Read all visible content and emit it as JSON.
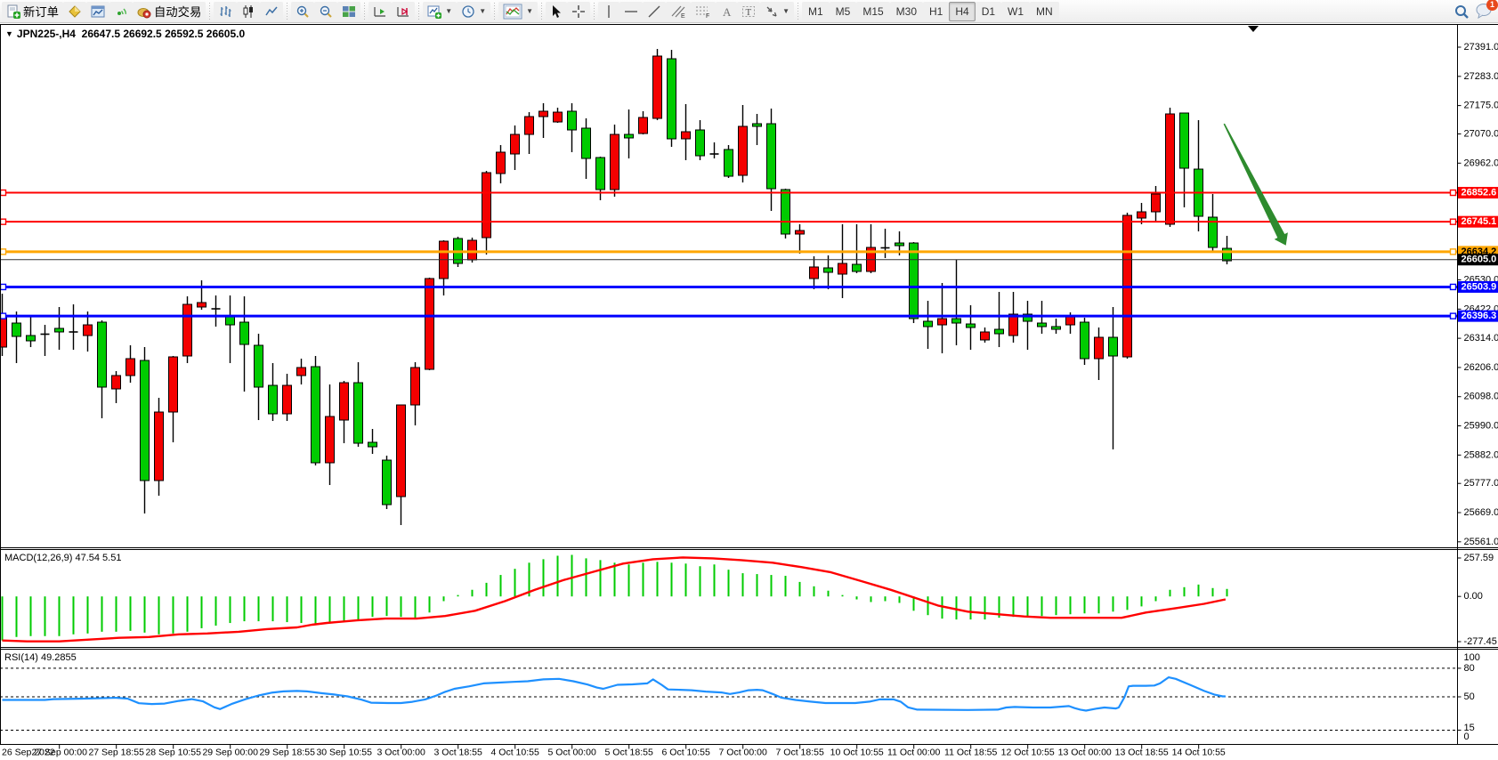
{
  "toolbar": {
    "new_order_label": "新订单",
    "auto_trading_label": "自动交易",
    "timeframes": [
      "M1",
      "M5",
      "M15",
      "M30",
      "H1",
      "H4",
      "D1",
      "W1",
      "MN"
    ],
    "active_timeframe": "H4",
    "chat_badge": "1",
    "tool_glyphs": {
      "vline": "|",
      "hline": "—",
      "trend": "/",
      "channel": "∕∕",
      "channel_tag": "E",
      "fib": "≋",
      "fib_tag": "F",
      "text": "A",
      "label": "T",
      "cursor": "➤",
      "cross": "+"
    }
  },
  "chart": {
    "symbol_period": "JPN225-,H4",
    "ohlc_text": "26647.5 26692.5 26592.5 26605.0"
  },
  "chart_data": {
    "type": "candlestick_with_indicators",
    "symbol": "JPN225-",
    "timeframe": "H4",
    "title_ohlc": {
      "open": 26647.5,
      "high": 26692.5,
      "low": 26592.5,
      "close": 26605.0
    },
    "scale": {
      "price_top": 27475.0,
      "price_bottom": 25535.7
    },
    "price_axis_labels": [
      27391.0,
      27283.0,
      27175.0,
      27070.0,
      26962.0,
      26530.0,
      26422.0,
      26314.0,
      26206.0,
      26098.0,
      25990.0,
      25882.0,
      25777.0,
      25669.0,
      25561.0
    ],
    "line_objects": [
      {
        "price": 26852.6,
        "color": "#ff0000",
        "width": 2,
        "label_bg": "#ff0000",
        "label_fg": "#ffffff"
      },
      {
        "price": 26745.1,
        "color": "#ff0000",
        "width": 2,
        "label_bg": "#ff0000",
        "label_fg": "#ffffff"
      },
      {
        "price": 26634.2,
        "color": "#ffa600",
        "width": 3,
        "label_bg": "#ffa600",
        "label_fg": "#000000"
      },
      {
        "price": 26503.9,
        "color": "#0000ff",
        "width": 3,
        "label_bg": "#0000ff",
        "label_fg": "#ffffff"
      },
      {
        "price": 26396.3,
        "color": "#0000ff",
        "width": 3,
        "label_bg": "#0000ff",
        "label_fg": "#ffffff"
      }
    ],
    "current_price": 26605.0,
    "x_axis_labels": [
      "26 Sep 2022",
      "27 Sep 00:00",
      "27 Sep 18:55",
      "28 Sep 10:55",
      "29 Sep 00:00",
      "29 Sep 18:55",
      "30 Sep 10:55",
      "3 Oct 00:00",
      "3 Oct 18:55",
      "4 Oct 10:55",
      "5 Oct 00:00",
      "5 Oct 18:55",
      "6 Oct 10:55",
      "7 Oct 00:00",
      "7 Oct 18:55",
      "10 Oct 10:55",
      "11 Oct 00:00",
      "11 Oct 18:55",
      "12 Oct 10:55",
      "13 Oct 00:00",
      "13 Oct 18:55",
      "14 Oct 10:55"
    ],
    "candles": [
      [
        26396.7,
        26479.0,
        26248.5,
        26281.4
      ],
      [
        26320.9,
        26413.1,
        26222.2,
        26370.3
      ],
      [
        26304.5,
        26396.7,
        26281.4,
        26324.2
      ],
      [
        26329.2,
        26363.7,
        26248.5,
        26329.2
      ],
      [
        26337.4,
        26429.6,
        26271.5,
        26350.6
      ],
      [
        26337.4,
        26439.5,
        26271.5,
        26337.4
      ],
      [
        26363.7,
        26413.1,
        26264.9,
        26324.2
      ],
      [
        26133.3,
        26380.2,
        26018.0,
        26373.6
      ],
      [
        26176.1,
        26192.5,
        26074.0,
        26126.7
      ],
      [
        26238.6,
        26288.0,
        26149.7,
        26176.1
      ],
      [
        25787.6,
        26281.4,
        25665.7,
        26232.0
      ],
      [
        26041.1,
        26093.7,
        25731.6,
        25787.6
      ],
      [
        26245.2,
        26248.5,
        25929.1,
        26041.1
      ],
      [
        26439.5,
        26469.1,
        26222.2,
        26248.5
      ],
      [
        26446.1,
        26528.4,
        26419.7,
        26429.6
      ],
      [
        26423.0,
        26472.4,
        26357.2,
        26423.0
      ],
      [
        26363.7,
        26472.4,
        26222.2,
        26396.7
      ],
      [
        26291.3,
        26469.1,
        26116.8,
        26373.6
      ],
      [
        26133.3,
        26330.8,
        26011.4,
        26288.0
      ],
      [
        26034.5,
        26222.2,
        26008.1,
        26139.8
      ],
      [
        26139.8,
        26182.7,
        26008.1,
        26034.5
      ],
      [
        26205.7,
        26238.6,
        26143.1,
        26176.1
      ],
      [
        25853.4,
        26248.5,
        25843.6,
        26209.0
      ],
      [
        26024.6,
        26143.1,
        25771.1,
        25853.4
      ],
      [
        26149.7,
        26156.3,
        25925.8,
        26011.4
      ],
      [
        25925.8,
        26225.5,
        25912.6,
        26149.7
      ],
      [
        25912.6,
        25978.5,
        25886.3,
        25929.1
      ],
      [
        25698.6,
        25879.7,
        25682.2,
        25863.2
      ],
      [
        26067.4,
        26067.4,
        25622.9,
        25728.3
      ],
      [
        26205.7,
        26225.5,
        25991.7,
        26067.4
      ],
      [
        26535.0,
        26538.3,
        26195.8,
        26199.1
      ],
      [
        26673.2,
        26676.5,
        26472.4,
        26535.0
      ],
      [
        26590.9,
        26689.7,
        26577.8,
        26683.1
      ],
      [
        26676.5,
        26686.4,
        26594.2,
        26604.1
      ],
      [
        26926.8,
        26933.3,
        26623.8,
        26686.4
      ],
      [
        27002.5,
        27028.8,
        26887.2,
        26923.5
      ],
      [
        27068.3,
        27101.3,
        26936.6,
        26995.9
      ],
      [
        27134.2,
        27150.6,
        26995.9,
        27068.3
      ],
      [
        27154.0,
        27183.6,
        27055.2,
        27134.2
      ],
      [
        27150.6,
        27167.1,
        27111.1,
        27114.4
      ],
      [
        27084.8,
        27183.6,
        27002.5,
        27154.0
      ],
      [
        26979.4,
        27127.6,
        26903.7,
        27091.4
      ],
      [
        26864.2,
        26986.0,
        26824.7,
        26982.7
      ],
      [
        27068.3,
        27104.6,
        26837.9,
        26864.2
      ],
      [
        27055.2,
        27160.5,
        26979.4,
        27068.3
      ],
      [
        27130.9,
        27154.0,
        27068.3,
        27071.6
      ],
      [
        27358.1,
        27384.4,
        27121.0,
        27127.6
      ],
      [
        27051.9,
        27381.1,
        27022.2,
        27348.2
      ],
      [
        27078.2,
        27180.3,
        26972.9,
        27051.9
      ],
      [
        26989.3,
        27121.0,
        26972.9,
        27084.8
      ],
      [
        26995.9,
        27038.7,
        26979.4,
        26995.9
      ],
      [
        26913.6,
        27028.8,
        26907.0,
        27012.4
      ],
      [
        27098.0,
        27177.0,
        26890.5,
        26916.9
      ],
      [
        27098.0,
        27144.1,
        27028.8,
        27107.9
      ],
      [
        26867.4,
        27163.8,
        26785.2,
        27107.9
      ],
      [
        26699.6,
        26867.4,
        26683.1,
        26864.2
      ],
      [
        26712.7,
        26735.8,
        26627.1,
        26699.6
      ],
      [
        26577.8,
        26617.3,
        26495.4,
        26535.0
      ],
      [
        26558.0,
        26620.6,
        26495.4,
        26574.5
      ],
      [
        26590.9,
        26735.8,
        26462.5,
        26551.4
      ],
      [
        26561.3,
        26735.8,
        26554.7,
        26587.6
      ],
      [
        26650.1,
        26735.8,
        26554.7,
        26561.3
      ],
      [
        26648.5,
        26719.3,
        26610.7,
        26648.5
      ],
      [
        26656.7,
        26709.5,
        26620.6,
        26666.6
      ],
      [
        26386.8,
        26669.9,
        26370.3,
        26666.6
      ],
      [
        26357.2,
        26452.6,
        26274.8,
        26376.9
      ],
      [
        26386.8,
        26518.5,
        26258.4,
        26363.7
      ],
      [
        26370.3,
        26604.1,
        26288.0,
        26386.8
      ],
      [
        26353.9,
        26436.2,
        26271.5,
        26367.0
      ],
      [
        26337.4,
        26353.9,
        26297.9,
        26307.8
      ],
      [
        26330.8,
        26485.6,
        26281.4,
        26347.2
      ],
      [
        26403.3,
        26485.6,
        26297.9,
        26324.2
      ],
      [
        26376.9,
        26452.6,
        26271.5,
        26403.3
      ],
      [
        26357.2,
        26452.6,
        26330.8,
        26370.3
      ],
      [
        26347.2,
        26386.8,
        26330.8,
        26357.2
      ],
      [
        26396.7,
        26409.8,
        26330.8,
        26363.7
      ],
      [
        26238.6,
        26390.1,
        26215.6,
        26373.6
      ],
      [
        26317.6,
        26353.9,
        26159.6,
        26238.6
      ],
      [
        26248.5,
        26429.6,
        25902.8,
        26317.6
      ],
      [
        26768.7,
        26778.6,
        26238.6,
        26245.2
      ],
      [
        26781.9,
        26814.8,
        26735.8,
        26758.8
      ],
      [
        26847.7,
        26877.4,
        26742.4,
        26781.9
      ],
      [
        27144.1,
        27167.1,
        26725.9,
        26735.8
      ],
      [
        26943.2,
        27147.4,
        26798.4,
        27147.4
      ],
      [
        26765.4,
        27121.0,
        26709.5,
        26939.9
      ],
      [
        26650.1,
        26847.7,
        26633.7,
        26762.1
      ],
      [
        26600.7,
        26692.9,
        26587.6,
        26646.8
      ]
    ],
    "colors": {
      "up": "#00cb00",
      "down": "#f40000",
      "wick": "#000000",
      "body_border": "#000000"
    },
    "arrow_object": {
      "t1": 85.8,
      "p1": 27107.8,
      "t2": 89.8,
      "p2": 26692.9,
      "color": "#2e8b2e"
    },
    "macd": {
      "label": "MACD(12,26,9) 47.54 5.51",
      "params": {
        "fast": 12,
        "slow": 26,
        "signal": 9
      },
      "current_main": 47.54,
      "current_signal": 5.51,
      "axis_labels": [
        257.59,
        0.0,
        -277.45
      ],
      "scale_max": 258,
      "scale_min": -287,
      "histogram": [
        -256.8,
        -236.4,
        -231.3,
        -231.3,
        -231.3,
        -221.1,
        -216.0,
        -205.8,
        -205.8,
        -200.7,
        -210.9,
        -221.1,
        -216.0,
        -205.8,
        -185.5,
        -170.2,
        -154.9,
        -144.7,
        -144.7,
        -144.7,
        -149.8,
        -154.9,
        -160.0,
        -154.9,
        -144.7,
        -134.5,
        -119.2,
        -114.1,
        -119.2,
        -129.4,
        -93.7,
        -27.5,
        8.2,
        38.7,
        79.5,
        125.3,
        161.0,
        196.7,
        217.1,
        237.4,
        242.5,
        222.2,
        212.0,
        196.7,
        186.5,
        196.7,
        201.8,
        196.7,
        191.6,
        176.3,
        186.5,
        155.9,
        135.5,
        130.4,
        125.3,
        120.2,
        84.6,
        59.1,
        33.6,
        8.2,
        -17.3,
        -32.6,
        -27.5,
        -37.7,
        -83.6,
        -109.0,
        -129.4,
        -134.5,
        -134.5,
        -134.5,
        -124.3,
        -119.2,
        -114.1,
        -114.1,
        -109.0,
        -103.9,
        -98.8,
        -98.8,
        -88.6,
        -78.4,
        -58.1,
        -27.5,
        38.7,
        54.0,
        69.3,
        48.9,
        43.8
      ],
      "signal_line": [
        [
          0,
          -256.8
        ],
        [
          1.75,
          -261.9
        ],
        [
          4,
          -261.9
        ],
        [
          6.1,
          -251.7
        ],
        [
          8.2,
          -241.5
        ],
        [
          10.3,
          -236.4
        ],
        [
          12.4,
          -221.1
        ],
        [
          14.4,
          -216.0
        ],
        [
          16.6,
          -205.8
        ],
        [
          18.6,
          -190.6
        ],
        [
          20.7,
          -180.4
        ],
        [
          21.75,
          -165.1
        ],
        [
          22.8,
          -154.9
        ],
        [
          24.9,
          -139.6
        ],
        [
          26.9,
          -129.4
        ],
        [
          29.1,
          -129.4
        ],
        [
          31.1,
          -114.1
        ],
        [
          33.2,
          -83.5
        ],
        [
          35.3,
          -27.5
        ],
        [
          37.4,
          38.7
        ],
        [
          39.4,
          94.8
        ],
        [
          41.6,
          145.7
        ],
        [
          43.6,
          191.6
        ],
        [
          45.7,
          217.1
        ],
        [
          47.8,
          227.3
        ],
        [
          49.9,
          222.2
        ],
        [
          51.9,
          212.0
        ],
        [
          54.1,
          196.7
        ],
        [
          56.1,
          171.2
        ],
        [
          58.2,
          140.6
        ],
        [
          60.3,
          89.7
        ],
        [
          62.4,
          38.7
        ],
        [
          64.25,
          -12.2
        ],
        [
          65.7,
          -53.0
        ],
        [
          67.8,
          -88.6
        ],
        [
          69.9,
          -103.9
        ],
        [
          71.75,
          -116.7
        ],
        [
          73.6,
          -124.3
        ],
        [
          78.6,
          -124.3
        ],
        [
          80.3,
          -93.7
        ],
        [
          82.4,
          -68.3
        ],
        [
          84.4,
          -42.8
        ],
        [
          85.9,
          -17.3
        ]
      ],
      "colors": {
        "histogram": "#00cb00",
        "signal": "#ff0000"
      }
    },
    "rsi": {
      "label": "RSI(14) 49.2855",
      "period": 14,
      "current_value": 49.2855,
      "axis_labels": [
        100,
        80,
        50,
        15,
        0
      ],
      "levels": [
        80,
        50,
        15
      ],
      "color": "#1e90ff",
      "line": [
        [
          0,
          46.7
        ],
        [
          3,
          46.7
        ],
        [
          3.6,
          47.6
        ],
        [
          5.8,
          48.1
        ],
        [
          8,
          49.0
        ],
        [
          8.8,
          48.1
        ],
        [
          9.6,
          43.3
        ],
        [
          10.5,
          42.4
        ],
        [
          11.4,
          42.9
        ],
        [
          12.4,
          45.7
        ],
        [
          13.3,
          47.6
        ],
        [
          14.1,
          45.2
        ],
        [
          14.9,
          39.0
        ],
        [
          15.3,
          37.1
        ],
        [
          16.1,
          42.4
        ],
        [
          17.1,
          47.6
        ],
        [
          18,
          51.4
        ],
        [
          18.9,
          54.3
        ],
        [
          19.75,
          55.7
        ],
        [
          20.7,
          56.2
        ],
        [
          21.4,
          55.7
        ],
        [
          22.4,
          53.8
        ],
        [
          23.3,
          52.4
        ],
        [
          24.25,
          50.5
        ],
        [
          25.2,
          47.1
        ],
        [
          25.9,
          43.8
        ],
        [
          27.1,
          43.5
        ],
        [
          28,
          43.5
        ],
        [
          28.8,
          44.8
        ],
        [
          29.7,
          47.3
        ],
        [
          30.5,
          51.4
        ],
        [
          31.1,
          55.2
        ],
        [
          31.75,
          58.4
        ],
        [
          32.8,
          61.0
        ],
        [
          33.8,
          64.1
        ],
        [
          34.9,
          65.0
        ],
        [
          35.9,
          65.7
        ],
        [
          36.9,
          66.4
        ],
        [
          38,
          68.3
        ],
        [
          39.1,
          68.9
        ],
        [
          40.1,
          66.4
        ],
        [
          41.1,
          62.9
        ],
        [
          41.75,
          59.7
        ],
        [
          42.2,
          58.4
        ],
        [
          43.2,
          62.6
        ],
        [
          44.25,
          63.1
        ],
        [
          45.3,
          64.1
        ],
        [
          45.7,
          68.3
        ],
        [
          46.3,
          62.6
        ],
        [
          46.75,
          57.8
        ],
        [
          47.6,
          57.4
        ],
        [
          48.4,
          56.9
        ],
        [
          49.4,
          55.5
        ],
        [
          50.5,
          54.6
        ],
        [
          51.1,
          53.0
        ],
        [
          51.75,
          54.6
        ],
        [
          52.4,
          56.9
        ],
        [
          53,
          57.4
        ],
        [
          53.4,
          56.9
        ],
        [
          54.1,
          53.0
        ],
        [
          54.7,
          49.2
        ],
        [
          55.7,
          46.7
        ],
        [
          56.75,
          45.0
        ],
        [
          57.8,
          43.5
        ],
        [
          59.9,
          43.5
        ],
        [
          60.9,
          45.0
        ],
        [
          61.6,
          47.3
        ],
        [
          62.6,
          47.3
        ],
        [
          63.1,
          44.8
        ],
        [
          63.6,
          39.0
        ],
        [
          64.25,
          36.5
        ],
        [
          67.8,
          36.2
        ],
        [
          69.9,
          36.5
        ],
        [
          70.5,
          38.8
        ],
        [
          71.1,
          39.3
        ],
        [
          72.4,
          38.8
        ],
        [
          73.6,
          38.8
        ],
        [
          74.4,
          39.7
        ],
        [
          74.9,
          40.3
        ],
        [
          75.3,
          38.1
        ],
        [
          75.7,
          36.5
        ],
        [
          76.1,
          35.5
        ],
        [
          76.9,
          37.8
        ],
        [
          77.4,
          38.8
        ],
        [
          78.2,
          37.8
        ],
        [
          78.4,
          38.8
        ],
        [
          78.8,
          49.5
        ],
        [
          79.1,
          61.0
        ],
        [
          79.4,
          61.6
        ],
        [
          80.3,
          61.6
        ],
        [
          80.9,
          61.9
        ],
        [
          81.3,
          64.1
        ],
        [
          81.9,
          70.5
        ],
        [
          82.4,
          68.9
        ],
        [
          83.4,
          62.6
        ],
        [
          84.4,
          56.2
        ],
        [
          85.1,
          52.4
        ],
        [
          85.7,
          50.5
        ],
        [
          85.9,
          50.5
        ]
      ]
    }
  }
}
